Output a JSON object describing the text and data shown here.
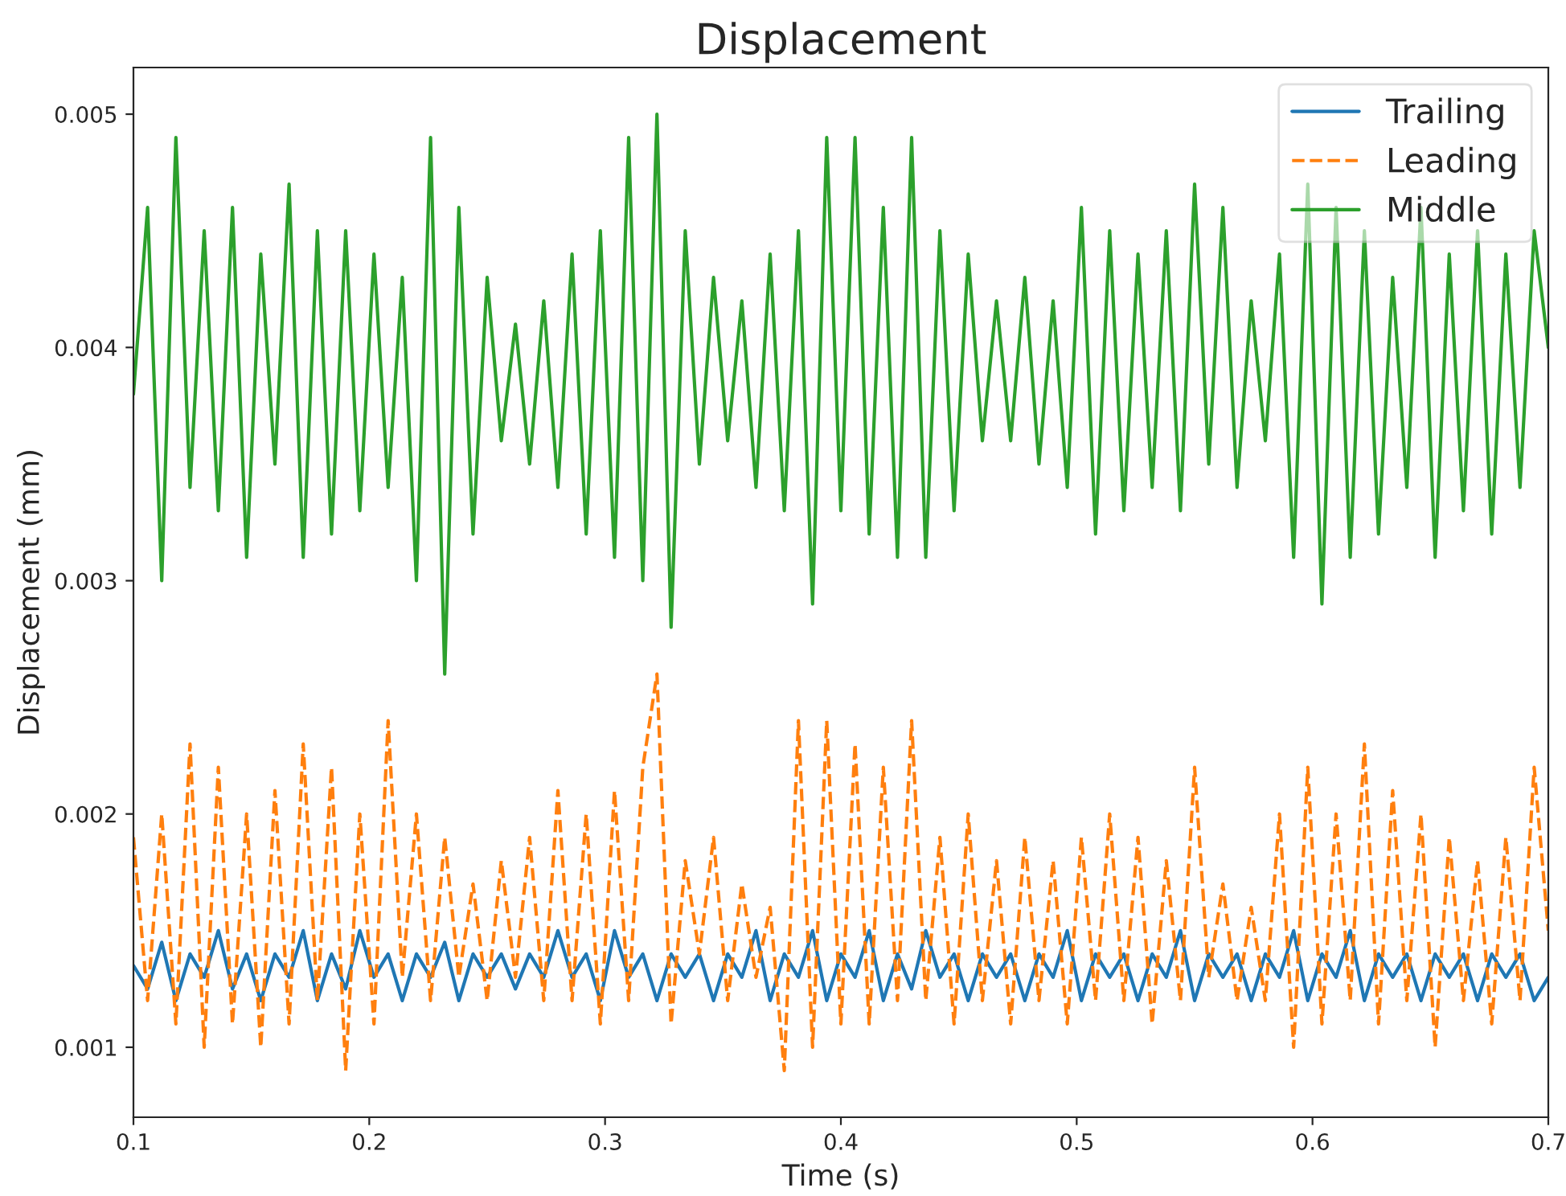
{
  "chart_data": {
    "type": "line",
    "title": "Displacement",
    "xlabel": "Time (s)",
    "ylabel": "Displacement (mm)",
    "x": [
      0.1,
      0.106,
      0.112,
      0.118,
      0.124,
      0.13,
      0.136,
      0.142,
      0.148,
      0.154,
      0.16,
      0.166,
      0.172,
      0.178,
      0.184,
      0.19,
      0.196,
      0.202,
      0.208,
      0.214,
      0.22,
      0.226,
      0.232,
      0.238,
      0.244,
      0.25,
      0.256,
      0.262,
      0.268,
      0.274,
      0.28,
      0.286,
      0.292,
      0.298,
      0.304,
      0.31,
      0.316,
      0.322,
      0.328,
      0.334,
      0.34,
      0.346,
      0.352,
      0.358,
      0.364,
      0.37,
      0.376,
      0.382,
      0.388,
      0.394,
      0.4,
      0.406,
      0.412,
      0.418,
      0.424,
      0.43,
      0.436,
      0.442,
      0.448,
      0.454,
      0.46,
      0.466,
      0.472,
      0.478,
      0.484,
      0.49,
      0.496,
      0.502,
      0.508,
      0.514,
      0.52,
      0.526,
      0.532,
      0.538,
      0.544,
      0.55,
      0.556,
      0.562,
      0.568,
      0.574,
      0.58,
      0.586,
      0.592,
      0.598,
      0.604,
      0.61,
      0.616,
      0.622,
      0.628,
      0.634,
      0.64,
      0.646,
      0.652,
      0.658,
      0.664,
      0.67,
      0.676,
      0.682,
      0.688,
      0.694,
      0.7
    ],
    "series": [
      {
        "name": "Trailing",
        "color": "#1f77b4",
        "line_style": "solid",
        "values": [
          0.00135,
          0.00125,
          0.00145,
          0.0012,
          0.0014,
          0.0013,
          0.0015,
          0.00125,
          0.0014,
          0.0012,
          0.0014,
          0.0013,
          0.0015,
          0.0012,
          0.0014,
          0.00125,
          0.0015,
          0.0013,
          0.0014,
          0.0012,
          0.0014,
          0.0013,
          0.00145,
          0.0012,
          0.0014,
          0.0013,
          0.0014,
          0.00125,
          0.0014,
          0.0013,
          0.0015,
          0.0013,
          0.0014,
          0.0012,
          0.0015,
          0.0013,
          0.0014,
          0.0012,
          0.0014,
          0.0013,
          0.0014,
          0.0012,
          0.0014,
          0.0013,
          0.0015,
          0.0012,
          0.0014,
          0.0013,
          0.0015,
          0.0012,
          0.0014,
          0.0013,
          0.0015,
          0.0012,
          0.0014,
          0.00125,
          0.0015,
          0.0013,
          0.0014,
          0.0012,
          0.0014,
          0.0013,
          0.0014,
          0.0012,
          0.0014,
          0.0013,
          0.0015,
          0.0012,
          0.0014,
          0.0013,
          0.0014,
          0.0012,
          0.0014,
          0.0013,
          0.0015,
          0.0012,
          0.0014,
          0.0013,
          0.0014,
          0.0012,
          0.0014,
          0.0013,
          0.0015,
          0.0012,
          0.0014,
          0.0013,
          0.0015,
          0.0012,
          0.0014,
          0.0013,
          0.0014,
          0.0012,
          0.0014,
          0.0013,
          0.0014,
          0.0012,
          0.0014,
          0.0013,
          0.0014,
          0.0012,
          0.0013
        ]
      },
      {
        "name": "Leading",
        "color": "#ff7f0e",
        "line_style": "dashed",
        "values": [
          0.0019,
          0.0012,
          0.002,
          0.0011,
          0.0023,
          0.001,
          0.0022,
          0.0011,
          0.002,
          0.001,
          0.0021,
          0.0011,
          0.0023,
          0.0012,
          0.0022,
          0.0009,
          0.002,
          0.0011,
          0.0024,
          0.0013,
          0.002,
          0.0012,
          0.0019,
          0.0013,
          0.0017,
          0.0012,
          0.0018,
          0.0013,
          0.0019,
          0.0012,
          0.0021,
          0.0012,
          0.002,
          0.0011,
          0.0021,
          0.0012,
          0.0022,
          0.0026,
          0.0011,
          0.0018,
          0.0014,
          0.0019,
          0.0012,
          0.0017,
          0.0013,
          0.0016,
          0.0009,
          0.0024,
          0.001,
          0.0024,
          0.0011,
          0.0023,
          0.0011,
          0.0022,
          0.0012,
          0.0024,
          0.0012,
          0.0019,
          0.0011,
          0.002,
          0.0012,
          0.0018,
          0.0011,
          0.0019,
          0.0012,
          0.0018,
          0.0011,
          0.0019,
          0.0012,
          0.002,
          0.0012,
          0.0019,
          0.0011,
          0.0018,
          0.0012,
          0.0022,
          0.0013,
          0.0017,
          0.0012,
          0.0016,
          0.0012,
          0.002,
          0.001,
          0.0022,
          0.0011,
          0.002,
          0.0012,
          0.0023,
          0.0011,
          0.0021,
          0.0012,
          0.002,
          0.001,
          0.0019,
          0.0012,
          0.0018,
          0.0011,
          0.0019,
          0.0012,
          0.0022,
          0.0015
        ]
      },
      {
        "name": "Middle",
        "color": "#2ca02c",
        "line_style": "solid",
        "values": [
          0.0038,
          0.0046,
          0.003,
          0.0049,
          0.0034,
          0.0045,
          0.0033,
          0.0046,
          0.0031,
          0.0044,
          0.0035,
          0.0047,
          0.0031,
          0.0045,
          0.0032,
          0.0045,
          0.0033,
          0.0044,
          0.0034,
          0.0043,
          0.003,
          0.0049,
          0.0026,
          0.0046,
          0.0032,
          0.0043,
          0.0036,
          0.0041,
          0.0035,
          0.0042,
          0.0034,
          0.0044,
          0.0032,
          0.0045,
          0.0031,
          0.0049,
          0.003,
          0.005,
          0.0028,
          0.0045,
          0.0035,
          0.0043,
          0.0036,
          0.0042,
          0.0034,
          0.0044,
          0.0033,
          0.0045,
          0.0029,
          0.0049,
          0.0033,
          0.0049,
          0.0032,
          0.0046,
          0.0031,
          0.0049,
          0.0031,
          0.0045,
          0.0033,
          0.0044,
          0.0036,
          0.0042,
          0.0036,
          0.0043,
          0.0035,
          0.0042,
          0.0034,
          0.0046,
          0.0032,
          0.0045,
          0.0033,
          0.0044,
          0.0034,
          0.0045,
          0.0033,
          0.0047,
          0.0035,
          0.0046,
          0.0034,
          0.0042,
          0.0036,
          0.0044,
          0.0031,
          0.0047,
          0.0029,
          0.0046,
          0.0031,
          0.0045,
          0.0032,
          0.0043,
          0.0034,
          0.0046,
          0.0031,
          0.0044,
          0.0033,
          0.0045,
          0.0032,
          0.0044,
          0.0034,
          0.0045,
          0.004
        ]
      }
    ],
    "xlim": [
      0.1,
      0.7
    ],
    "xticks": [
      0.1,
      0.2,
      0.3,
      0.4,
      0.5,
      0.6,
      0.7
    ],
    "ylim": [
      0.0007,
      0.0052
    ],
    "yticks": [
      0.001,
      0.002,
      0.003,
      0.004,
      0.005
    ],
    "legend": "top right",
    "grid": false
  }
}
